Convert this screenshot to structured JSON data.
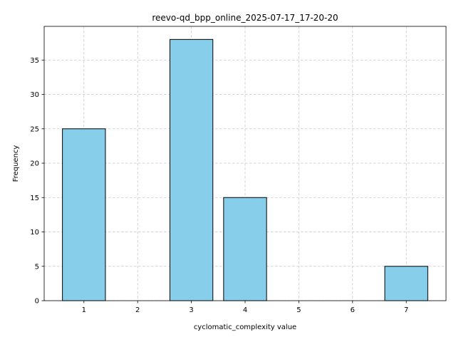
{
  "chart_data": {
    "type": "bar",
    "title": "reevo-qd_bpp_online_2025-07-17_17-20-20",
    "xlabel": "cyclomatic_complexity value",
    "ylabel": "Frequency",
    "x": [
      1,
      2,
      3,
      4,
      5,
      6,
      7
    ],
    "values": [
      25,
      0,
      38,
      15,
      0,
      0,
      5
    ],
    "xticks": [
      "1",
      "2",
      "3",
      "4",
      "5",
      "6",
      "7"
    ],
    "yticks": [
      0,
      5,
      10,
      15,
      20,
      25,
      30,
      35
    ],
    "xlim": [
      0.26,
      7.74
    ],
    "ylim": [
      0,
      39.9
    ],
    "grid": true,
    "colors": {
      "bar_fill": "#87ceeb",
      "bar_edge": "#000000",
      "grid": "#c8c8c8"
    }
  }
}
